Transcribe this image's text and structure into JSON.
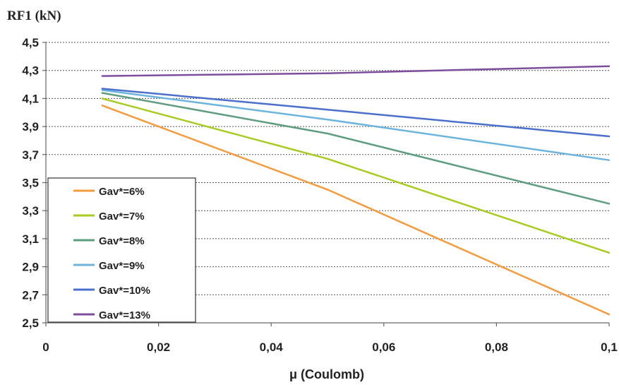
{
  "chart_data": {
    "type": "line",
    "ylabel": "RF1  (kN)",
    "xlabel": "μ (Coulomb)",
    "xlim": [
      0,
      0.1
    ],
    "ylim": [
      2.5,
      4.5
    ],
    "x_ticks": [
      0,
      0.02,
      0.04,
      0.06,
      0.08,
      0.1
    ],
    "x_tick_labels": [
      "0",
      "0,02",
      "0,04",
      "0,06",
      "0,08",
      "0,1"
    ],
    "y_ticks": [
      2.5,
      2.7,
      2.9,
      3.1,
      3.3,
      3.5,
      3.7,
      3.9,
      4.1,
      4.3,
      4.5
    ],
    "y_tick_labels": [
      "2,5",
      "2,7",
      "2,9",
      "3,1",
      "3,3",
      "3,5",
      "3,7",
      "3,9",
      "4,1",
      "4,3",
      "4,5"
    ],
    "grid": "horizontal-dotted",
    "legend_position": "lower-left",
    "series": [
      {
        "name": "Gav*=6%",
        "color": "#F59B3D",
        "x": [
          0.01,
          0.05,
          0.1
        ],
        "y": [
          4.05,
          3.45,
          2.56
        ]
      },
      {
        "name": "Gav*=7%",
        "color": "#A6CC1F",
        "x": [
          0.01,
          0.05,
          0.1
        ],
        "y": [
          4.1,
          3.67,
          3.0
        ]
      },
      {
        "name": "Gav*=8%",
        "color": "#5E9E7E",
        "x": [
          0.01,
          0.05,
          0.1
        ],
        "y": [
          4.14,
          3.85,
          3.35
        ]
      },
      {
        "name": "Gav*=9%",
        "color": "#6CB4E0",
        "x": [
          0.01,
          0.05,
          0.1
        ],
        "y": [
          4.16,
          3.95,
          3.66
        ]
      },
      {
        "name": "Gav*=10%",
        "color": "#4A6FCC",
        "x": [
          0.01,
          0.05,
          0.1
        ],
        "y": [
          4.17,
          4.02,
          3.83
        ]
      },
      {
        "name": "Gav*=13%",
        "color": "#7E4E9E",
        "x": [
          0.01,
          0.05,
          0.1
        ],
        "y": [
          4.26,
          4.28,
          4.33
        ]
      }
    ]
  }
}
